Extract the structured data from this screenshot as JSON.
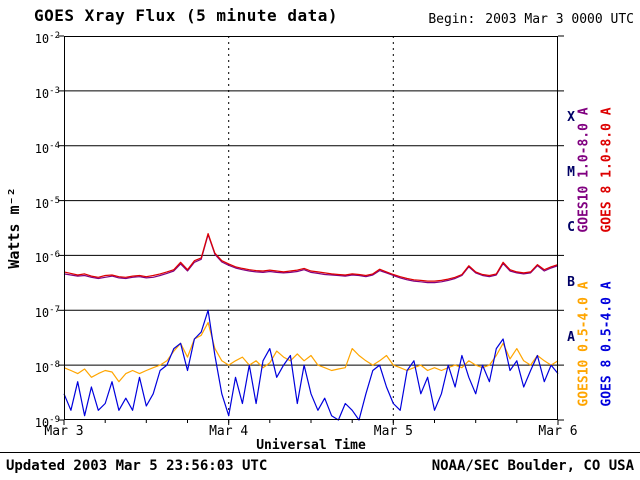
{
  "header": {
    "title": "GOES Xray Flux (5 minute data)",
    "begin_label": "Begin:",
    "begin_value": "2003 Mar 3 0000 UTC"
  },
  "footer": {
    "updated": "Updated 2003 Mar 5 23:56:03 UTC",
    "source": "NOAA/SEC Boulder, CO USA"
  },
  "chart_data": {
    "type": "line",
    "title": "GOES Xray Flux (5 minute data)",
    "x_axis": {
      "label": "Universal Time",
      "range_hours": [
        0,
        72
      ],
      "ticks": [
        {
          "hour": 0,
          "label": "Mar 3"
        },
        {
          "hour": 24,
          "label": "Mar 4"
        },
        {
          "hour": 48,
          "label": "Mar 5"
        },
        {
          "hour": 72,
          "label": "Mar 6"
        }
      ],
      "minor_tick_step_hours": 6
    },
    "y_axis": {
      "label": "Watts m⁻²",
      "scale": "log",
      "exponents": [
        -2,
        -3,
        -4,
        -5,
        -6,
        -7,
        -8,
        -9
      ]
    },
    "grid": {
      "h_line_exponents": [
        -3,
        -4,
        -5,
        -6,
        -7,
        -8
      ],
      "v_line_hours": [
        24,
        48
      ]
    },
    "flare_classes": {
      "color": "#000066",
      "labels": [
        {
          "label": "X",
          "mid_exponent": -3.5
        },
        {
          "label": "M",
          "mid_exponent": -4.5
        },
        {
          "label": "C",
          "mid_exponent": -5.5
        },
        {
          "label": "B",
          "mid_exponent": -6.5
        },
        {
          "label": "A",
          "mid_exponent": -7.5
        }
      ]
    },
    "x_hours": [
      0,
      1,
      2,
      3,
      4,
      5,
      6,
      7,
      8,
      9,
      10,
      11,
      12,
      13,
      14,
      15,
      16,
      17,
      18,
      19,
      20,
      21,
      22,
      23,
      24,
      25,
      26,
      27,
      28,
      29,
      30,
      31,
      32,
      33,
      34,
      35,
      36,
      37,
      38,
      39,
      40,
      41,
      42,
      43,
      44,
      45,
      46,
      47,
      48,
      49,
      50,
      51,
      52,
      53,
      54,
      55,
      56,
      57,
      58,
      59,
      60,
      61,
      62,
      63,
      64,
      65,
      66,
      67,
      68,
      69,
      70,
      71,
      72
    ],
    "series": [
      {
        "id": "goes10-long",
        "name": "GOES10 1.0-8.0 A",
        "color": "#800080",
        "values": [
          4.6e-07,
          4.4e-07,
          4.2e-07,
          4.3e-07,
          4e-07,
          3.8e-07,
          4e-07,
          4.2e-07,
          3.9e-07,
          3.8e-07,
          4e-07,
          4.1e-07,
          3.9e-07,
          4e-07,
          4.3e-07,
          4.7e-07,
          5.2e-07,
          7e-07,
          5.2e-07,
          7.5e-07,
          8.5e-07,
          2.4e-06,
          1.05e-06,
          7.6e-07,
          6.6e-07,
          5.9e-07,
          5.5e-07,
          5.2e-07,
          5e-07,
          4.9e-07,
          5.1e-07,
          4.9e-07,
          4.8e-07,
          4.9e-07,
          5.1e-07,
          5.5e-07,
          4.9e-07,
          4.7e-07,
          4.5e-07,
          4.4e-07,
          4.3e-07,
          4.2e-07,
          4.4e-07,
          4.3e-07,
          4.1e-07,
          4.4e-07,
          5.3e-07,
          4.8e-07,
          4.3e-07,
          3.9e-07,
          3.6e-07,
          3.4e-07,
          3.3e-07,
          3.2e-07,
          3.2e-07,
          3.3e-07,
          3.5e-07,
          3.8e-07,
          4.3e-07,
          6.2e-07,
          4.8e-07,
          4.3e-07,
          4.1e-07,
          4.4e-07,
          7.1e-07,
          5.2e-07,
          4.8e-07,
          4.6e-07,
          4.8e-07,
          6.5e-07,
          5.2e-07,
          5.9e-07,
          6.5e-07
        ]
      },
      {
        "id": "goes8-long",
        "name": "GOES 8 1.0-8.0 A",
        "color": "#dd0000",
        "values": [
          5e-07,
          4.7e-07,
          4.4e-07,
          4.6e-07,
          4.2e-07,
          4e-07,
          4.3e-07,
          4.4e-07,
          4.1e-07,
          4e-07,
          4.2e-07,
          4.3e-07,
          4.1e-07,
          4.3e-07,
          4.6e-07,
          5e-07,
          5.5e-07,
          7.5e-07,
          5.5e-07,
          8e-07,
          9e-07,
          2.5e-06,
          1.1e-06,
          8e-07,
          7e-07,
          6.2e-07,
          5.8e-07,
          5.5e-07,
          5.3e-07,
          5.2e-07,
          5.4e-07,
          5.2e-07,
          5e-07,
          5.2e-07,
          5.4e-07,
          5.8e-07,
          5.2e-07,
          5e-07,
          4.8e-07,
          4.6e-07,
          4.5e-07,
          4.4e-07,
          4.6e-07,
          4.5e-07,
          4.3e-07,
          4.6e-07,
          5.6e-07,
          5e-07,
          4.5e-07,
          4.1e-07,
          3.8e-07,
          3.6e-07,
          3.5e-07,
          3.4e-07,
          3.4e-07,
          3.5e-07,
          3.7e-07,
          4e-07,
          4.5e-07,
          6.5e-07,
          5e-07,
          4.5e-07,
          4.3e-07,
          4.6e-07,
          7.5e-07,
          5.5e-07,
          5e-07,
          4.8e-07,
          5e-07,
          6.8e-07,
          5.5e-07,
          6.2e-07,
          6.8e-07
        ]
      },
      {
        "id": "goes10-short",
        "name": "GOES10 0.5-4.0 A",
        "color": "#ffa500",
        "values": [
          9e-09,
          8e-09,
          7e-09,
          8.5e-09,
          6e-09,
          7e-09,
          8e-09,
          7.5e-09,
          5e-09,
          7e-09,
          8e-09,
          7e-09,
          8e-09,
          9e-09,
          1e-08,
          1.2e-08,
          1.8e-08,
          2.5e-08,
          1.4e-08,
          3e-08,
          3.5e-08,
          6e-08,
          2e-08,
          1.2e-08,
          1e-08,
          1.2e-08,
          1.4e-08,
          1e-08,
          1.2e-08,
          9e-09,
          1.1e-08,
          1.8e-08,
          1.4e-08,
          1.2e-08,
          1.6e-08,
          1.2e-08,
          1.5e-08,
          1e-08,
          9e-09,
          8e-09,
          8.5e-09,
          9e-09,
          2e-08,
          1.5e-08,
          1.2e-08,
          1e-08,
          1.2e-08,
          1.5e-08,
          1e-08,
          9e-09,
          8e-09,
          9e-09,
          1e-08,
          8e-09,
          9e-09,
          8e-09,
          9e-09,
          1e-08,
          9e-09,
          1.2e-08,
          1e-08,
          9e-09,
          1e-08,
          1.5e-08,
          2.5e-08,
          1.3e-08,
          2e-08,
          1.2e-08,
          1e-08,
          1.5e-08,
          1.2e-08,
          1e-08,
          1.2e-08
        ]
      },
      {
        "id": "goes8-short",
        "name": "GOES 8 0.5-4.0 A",
        "color": "#0000dd",
        "values": [
          3e-09,
          1.5e-09,
          5e-09,
          1.2e-09,
          4e-09,
          1.5e-09,
          2e-09,
          5e-09,
          1.5e-09,
          2.5e-09,
          1.5e-09,
          6e-09,
          1.8e-09,
          3e-09,
          8e-09,
          1e-08,
          2e-08,
          2.5e-08,
          8e-09,
          3e-08,
          4e-08,
          1e-07,
          1.5e-08,
          3e-09,
          1.2e-09,
          6e-09,
          2e-09,
          1e-08,
          2e-09,
          1.2e-08,
          2e-08,
          6e-09,
          1e-08,
          1.5e-08,
          2e-09,
          1e-08,
          3e-09,
          1.5e-09,
          2.5e-09,
          1.2e-09,
          1e-09,
          2e-09,
          1.5e-09,
          1e-09,
          3e-09,
          8e-09,
          1e-08,
          4e-09,
          2e-09,
          1.5e-09,
          8e-09,
          1.2e-08,
          3e-09,
          6e-09,
          1.5e-09,
          3e-09,
          1e-08,
          4e-09,
          1.5e-08,
          6e-09,
          3e-09,
          1e-08,
          5e-09,
          2e-08,
          3e-08,
          8e-09,
          1.2e-08,
          4e-09,
          8e-09,
          1.5e-08,
          5e-09,
          1e-08,
          7e-09
        ]
      }
    ],
    "legend": [
      {
        "series": "goes10-long",
        "text": "GOES10 1.0-8.0 A",
        "color": "#800080"
      },
      {
        "series": "goes8-long",
        "text": "GOES 8 1.0-8.0 A",
        "color": "#dd0000"
      },
      {
        "series": "goes10-short",
        "text": "GOES10 0.5-4.0 A",
        "color": "#ffa500"
      },
      {
        "series": "goes8-short",
        "text": "GOES 8 0.5-4.0 A",
        "color": "#0000dd"
      }
    ]
  }
}
